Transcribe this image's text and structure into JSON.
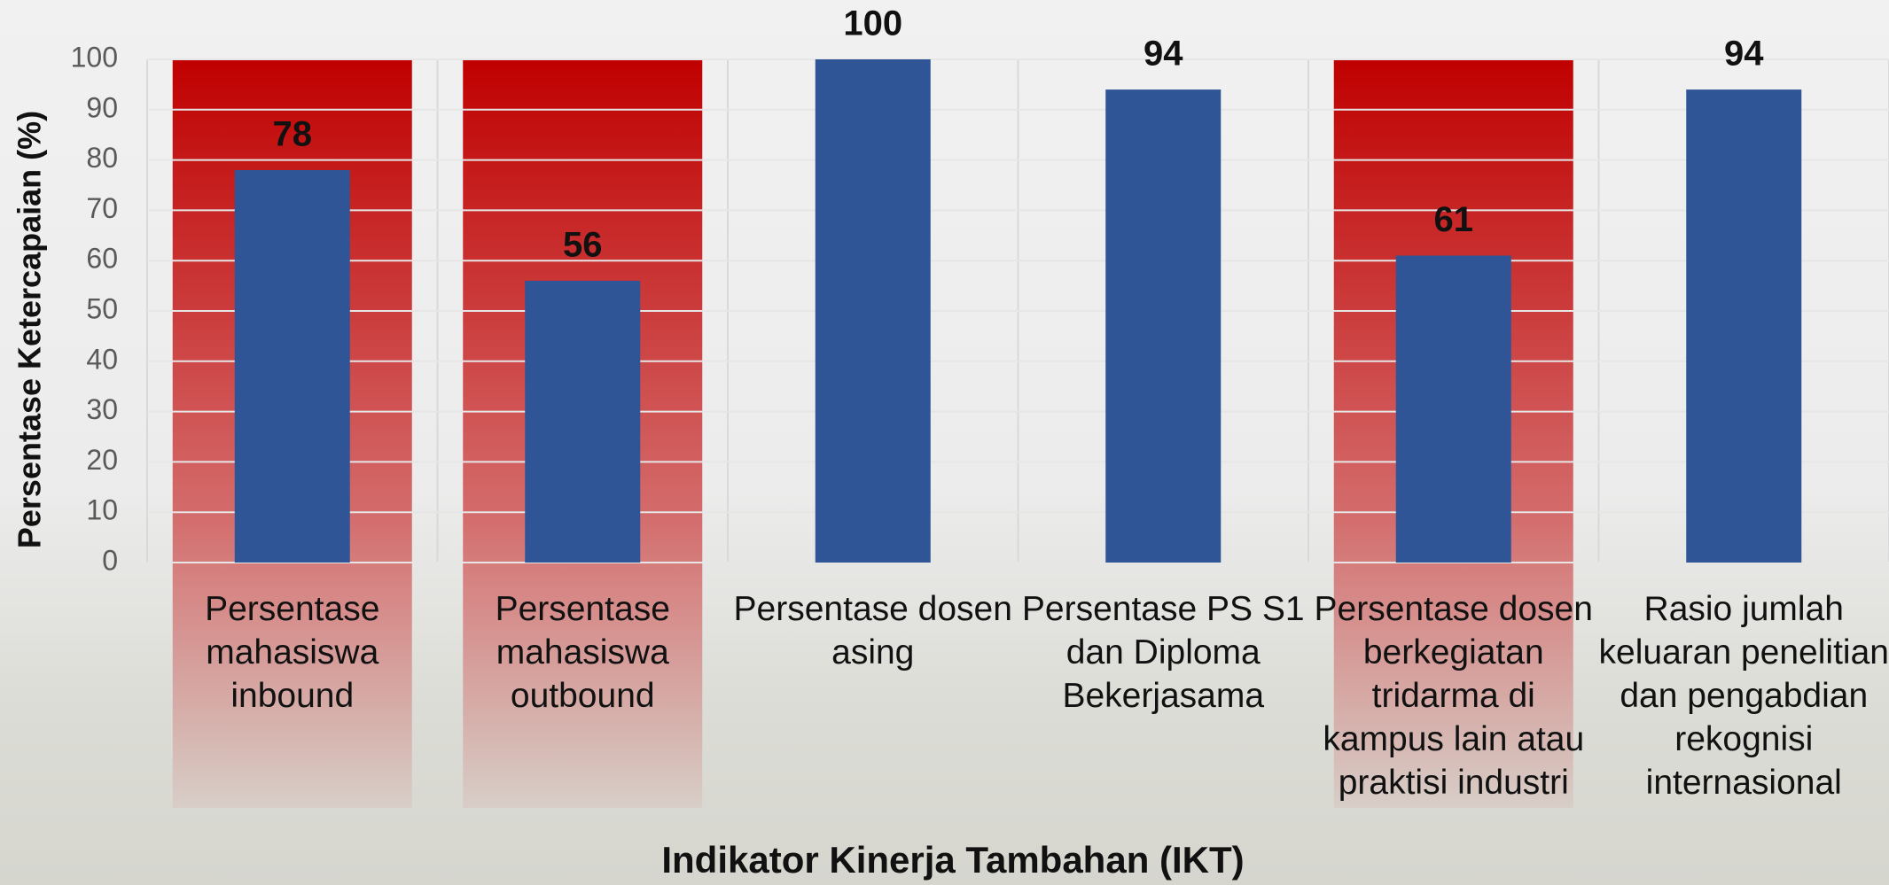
{
  "chart_data": {
    "type": "bar",
    "y_axis_label": "Persentase Ketercapaian (%)",
    "x_axis_label": "Indikator Kinerja Tambahan (IKT)",
    "categories": [
      "Persentase mahasiswa inbound",
      "Persentase mahasiswa outbound",
      "Persentase dosen asing",
      "Persentase PS S1 dan Diploma Bekerjasama",
      "Persentase dosen berkegiatan tridarma di kampus lain atau praktisi industri",
      "Rasio jumlah keluaran penelitian dan pengabdian rekognisi internasional"
    ],
    "values": [
      78,
      56,
      100,
      94,
      61,
      94
    ],
    "color": "#2f5597",
    "highlight": [
      true,
      true,
      false,
      false,
      true,
      false
    ],
    "highlight_color": "#c00000",
    "ylim": [
      0,
      100
    ],
    "yticks": [
      0,
      10,
      20,
      30,
      40,
      50,
      60,
      70,
      80,
      90,
      100
    ],
    "grid": true
  }
}
